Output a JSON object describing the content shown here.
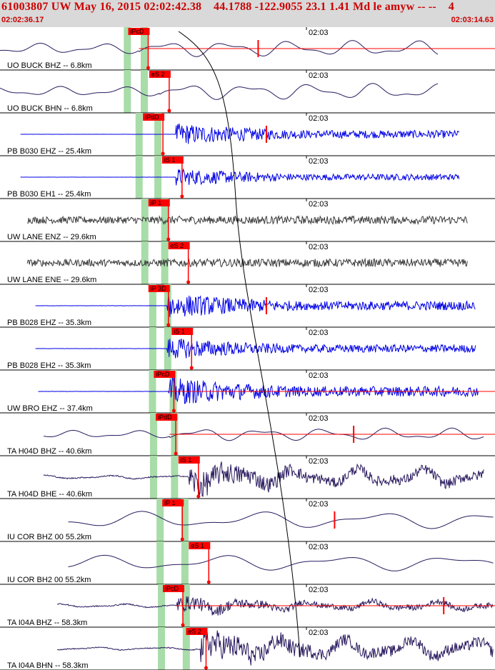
{
  "event": {
    "title": "61003807 UW May 16, 2015 02:02:42.38    44.1788 -122.9055 23.1 1.41 Md le amyw -- --    4",
    "time_start": "02:02:36.17",
    "time_end": "02:03:14.63",
    "minute_tick": "02:03"
  },
  "colors": {
    "header_bg": "#d9d9d9",
    "header_text": "#cc0000",
    "pick_red": "#ff0000",
    "window_green": "#a8dca8",
    "trace_dark": "#2a1a5e",
    "trace_blue": "#0000e6",
    "trace_gray": "#3c3c3c"
  },
  "channels": [
    {
      "label": "UO BUCK BHZ -- 6.8km",
      "pick": "iPcD",
      "pick_t": 0.51,
      "green": [
        0.61,
        1.23
      ],
      "color": "dark",
      "shape": "lp",
      "span": [
        0.0,
        15.0
      ],
      "onset": 0.51,
      "amp_pre": 0.3,
      "amp_post": 0.45,
      "hf": false,
      "red_line": true,
      "red_mark": 9.2
    },
    {
      "label": "UO BUCK BHN -- 6.8km",
      "pick": "eS 2",
      "pick_t": 1.28,
      "green": [
        0.61,
        1.23
      ],
      "color": "dark",
      "shape": "lp",
      "span": [
        0.0,
        15.0
      ],
      "onset": 1.28,
      "amp_pre": 0.28,
      "amp_post": 0.45,
      "hf": false,
      "red_line": false,
      "red_mark": null
    },
    {
      "label": "PB B030 EHZ -- 25.4km",
      "pick": "iPdD",
      "pick_t": 1.05,
      "green": [
        1.04,
        1.73
      ],
      "color": "blue",
      "shape": "flat",
      "span": [
        0.75,
        15.8
      ],
      "onset": 1.85,
      "amp_pre": 0.01,
      "amp_post": 0.35,
      "hf": true,
      "red_line": false,
      "red_mark": 9.5
    },
    {
      "label": "PB B030 EH1 -- 25.4km",
      "pick": "iS 1",
      "pick_t": 1.75,
      "green": [
        1.04,
        1.73
      ],
      "color": "blue",
      "shape": "flat",
      "span": [
        0.75,
        15.8
      ],
      "onset": 1.85,
      "amp_pre": 0.01,
      "amp_post": 0.28,
      "hf": true,
      "red_line": false,
      "red_mark": null
    },
    {
      "label": "UW LANE ENZ -- 29.6km",
      "pick": "iP 1",
      "pick_t": 1.25,
      "green": [
        1.25,
        1.98
      ],
      "color": "gray",
      "shape": "noise",
      "span": [
        1.0,
        16.1
      ],
      "onset": 1.25,
      "amp_pre": 0.35,
      "amp_post": 0.4,
      "hf": true,
      "red_line": false,
      "red_mark": null
    },
    {
      "label": "UW LANE ENE -- 29.6km",
      "pick": "eS 2",
      "pick_t": 1.98,
      "green": [
        1.25,
        1.98
      ],
      "color": "gray",
      "shape": "noise",
      "span": [
        1.0,
        16.1
      ],
      "onset": 1.25,
      "amp_pre": 0.35,
      "amp_post": 0.4,
      "hf": true,
      "red_line": false,
      "red_mark": null
    },
    {
      "label": "PB B028 EHZ -- 35.3km",
      "pick": "iP 3D",
      "pick_t": 1.25,
      "green": [
        1.54,
        2.09
      ],
      "color": "blue",
      "shape": "flat",
      "span": [
        1.3,
        16.4
      ],
      "onset": 1.55,
      "amp_pre": 0.02,
      "amp_post": 0.4,
      "hf": true,
      "red_line": false,
      "red_mark": 9.5
    },
    {
      "label": "PB B028 EH2 -- 35.3km",
      "pick": "iS 1",
      "pick_t": 2.1,
      "green": [
        1.54,
        2.09
      ],
      "color": "blue",
      "shape": "flat",
      "span": [
        1.3,
        16.4
      ],
      "onset": 1.55,
      "amp_pre": 0.02,
      "amp_post": 0.35,
      "hf": true,
      "red_line": false,
      "red_mark": null
    },
    {
      "label": "UW BRO EHZ -- 37.4km",
      "pick": "iPcD",
      "pick_t": 1.45,
      "green": [
        1.53,
        2.29
      ],
      "color": "blue",
      "shape": "flat",
      "span": [
        1.4,
        16.5
      ],
      "onset": 1.6,
      "amp_pre": 0.02,
      "amp_post": 0.45,
      "hf": true,
      "red_line": true,
      "red_mark": null
    },
    {
      "label": "TA H04D BHZ -- 40.6km",
      "pick": "iPdD",
      "pick_t": 1.52,
      "green": [
        1.57,
        2.34
      ],
      "color": "dark",
      "shape": "lp",
      "span": [
        1.6,
        16.7
      ],
      "onset": 1.63,
      "amp_pre": 0.22,
      "amp_post": 0.35,
      "hf": false,
      "red_line": true,
      "red_mark": 12.7
    },
    {
      "label": "TA H04D BHE -- 40.6km",
      "pick": "iS 1",
      "pick_t": 2.35,
      "green": [
        1.57,
        2.34
      ],
      "color": "dark",
      "shape": "lp",
      "span": [
        1.6,
        16.7
      ],
      "onset": 2.35,
      "amp_pre": 0.1,
      "amp_post": 0.45,
      "hf": true,
      "red_line": false,
      "red_mark": null
    },
    {
      "label": "IU COR BHZ 00 55.2km",
      "pick": "iP 1",
      "pick_t": 1.76,
      "green": [
        1.81,
        2.72
      ],
      "color": "dark",
      "shape": "lp2",
      "span": [
        2.5,
        17.8
      ],
      "onset": 1.9,
      "amp_pre": 0.48,
      "amp_post": 0.48,
      "hf": false,
      "red_line": false,
      "red_mark": 12.0
    },
    {
      "label": "IU COR BH2 00 55.2km",
      "pick": "eS 1",
      "pick_t": 2.73,
      "green": [
        1.81,
        2.72
      ],
      "color": "dark",
      "shape": "lp2",
      "span": [
        2.5,
        17.8
      ],
      "onset": 2.73,
      "amp_pre": 0.42,
      "amp_post": 0.45,
      "hf": false,
      "red_line": false,
      "red_mark": null
    },
    {
      "label": "TA I04A BHZ -- 58.3km",
      "pick": "iPcD",
      "pick_t": 1.78,
      "green": [
        1.86,
        2.77
      ],
      "color": "dark",
      "shape": "lp",
      "span": [
        2.1,
        18.0
      ],
      "onset": 1.88,
      "amp_pre": 0.1,
      "amp_post": 0.25,
      "hf": true,
      "red_line": true,
      "red_mark": 16.0
    },
    {
      "label": "TA I04A BHN -- 58.3km",
      "pick": "eS 2",
      "pick_t": 2.63,
      "green": [
        1.86,
        2.77
      ],
      "color": "dark",
      "shape": "lp",
      "span": [
        2.1,
        18.0
      ],
      "onset": 2.78,
      "amp_pre": 0.08,
      "amp_post": 0.5,
      "hf": true,
      "red_line": false,
      "red_mark": null
    }
  ]
}
